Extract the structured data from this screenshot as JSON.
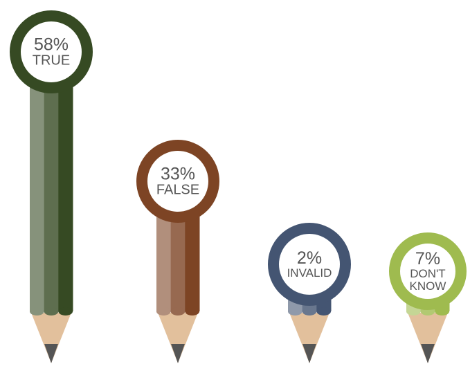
{
  "chart_data": {
    "type": "pencil",
    "categories": [
      "TRUE",
      "FALSE",
      "INVALID",
      "DON'T KNOW"
    ],
    "values": [
      58,
      33,
      2,
      7
    ],
    "value_labels": [
      "58%",
      "33%",
      "2%",
      "7%"
    ],
    "colors": [
      "#364a23",
      "#7d4424",
      "#445572",
      "#9fbb4f"
    ]
  }
}
